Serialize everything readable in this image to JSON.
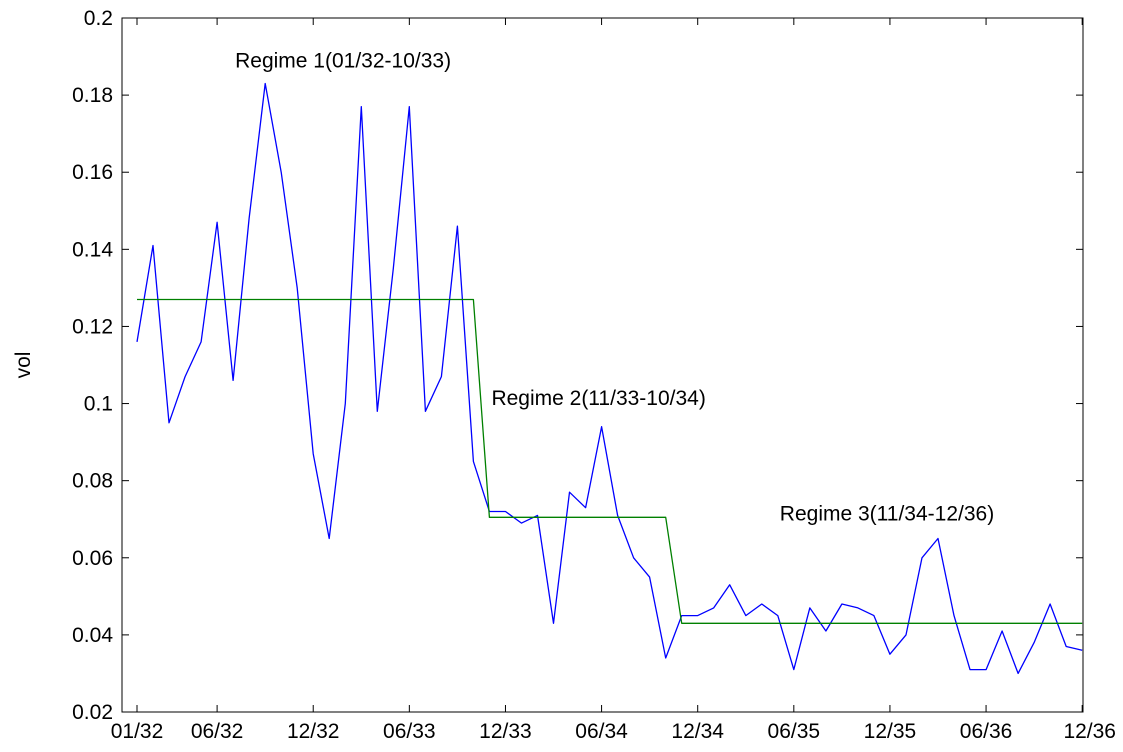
{
  "chart_data": {
    "type": "line",
    "title": "",
    "xlabel": "",
    "ylabel": "vol",
    "ylim": [
      0.02,
      0.2
    ],
    "grid": false,
    "legend": "none",
    "x_unit": "month (MM/YY)",
    "x_ticks": [
      "01/32",
      "06/32",
      "12/32",
      "06/33",
      "12/33",
      "06/34",
      "12/34",
      "06/35",
      "12/35",
      "06/36",
      "12/36"
    ],
    "y_ticks": [
      0.02,
      0.04,
      0.06,
      0.08,
      0.1,
      0.12,
      0.14,
      0.16,
      0.18,
      0.2
    ],
    "y_tick_labels": [
      "0.02",
      "0.04",
      "0.06",
      "0.08",
      "0.1",
      "0.12",
      "0.14",
      "0.16",
      "0.18",
      "0.2"
    ],
    "x": [
      "01/32",
      "02/32",
      "03/32",
      "04/32",
      "05/32",
      "06/32",
      "07/32",
      "08/32",
      "09/32",
      "10/32",
      "11/32",
      "12/32",
      "01/33",
      "02/33",
      "03/33",
      "04/33",
      "05/33",
      "06/33",
      "07/33",
      "08/33",
      "09/33",
      "10/33",
      "11/33",
      "12/33",
      "01/34",
      "02/34",
      "03/34",
      "04/34",
      "05/34",
      "06/34",
      "07/34",
      "08/34",
      "09/34",
      "10/34",
      "11/34",
      "12/34",
      "01/35",
      "02/35",
      "03/35",
      "04/35",
      "05/35",
      "06/35",
      "07/35",
      "08/35",
      "09/35",
      "10/35",
      "11/35",
      "12/35",
      "01/36",
      "02/36",
      "03/36",
      "04/36",
      "05/36",
      "06/36",
      "07/36",
      "08/36",
      "09/36",
      "10/36",
      "11/36",
      "12/36"
    ],
    "series": [
      {
        "name": "",
        "color": "#0000ff",
        "values": [
          0.116,
          0.141,
          0.095,
          0.107,
          0.116,
          0.147,
          0.106,
          0.148,
          0.183,
          0.16,
          0.13,
          0.087,
          0.065,
          0.1,
          0.177,
          0.098,
          0.135,
          0.177,
          0.098,
          0.107,
          0.146,
          0.085,
          0.072,
          0.072,
          0.069,
          0.071,
          0.043,
          0.077,
          0.073,
          0.094,
          0.071,
          0.06,
          0.055,
          0.034,
          0.045,
          0.045,
          0.047,
          0.053,
          0.045,
          0.048,
          0.045,
          0.031,
          0.047,
          0.041,
          0.048,
          0.047,
          0.045,
          0.035,
          0.04,
          0.06,
          0.065,
          0.045,
          0.031,
          0.031,
          0.041,
          0.03,
          0.038,
          0.048,
          0.037,
          0.036
        ]
      },
      {
        "name": "",
        "color": "#008000",
        "values": [
          0.127,
          0.127,
          0.127,
          0.127,
          0.127,
          0.127,
          0.127,
          0.127,
          0.127,
          0.127,
          0.127,
          0.127,
          0.127,
          0.127,
          0.127,
          0.127,
          0.127,
          0.127,
          0.127,
          0.127,
          0.127,
          0.127,
          0.0705,
          0.0705,
          0.0705,
          0.0705,
          0.0705,
          0.0705,
          0.0705,
          0.0705,
          0.0705,
          0.0705,
          0.0705,
          0.0705,
          0.043,
          0.043,
          0.043,
          0.043,
          0.043,
          0.043,
          0.043,
          0.043,
          0.043,
          0.043,
          0.043,
          0.043,
          0.043,
          0.043,
          0.043,
          0.043,
          0.043,
          0.043,
          0.043,
          0.043,
          0.043,
          0.043,
          0.043,
          0.043,
          0.043,
          0.043
        ]
      }
    ],
    "annotations": [
      {
        "text": "Regime 1(01/32-10/33)",
        "x": "07/32",
        "y": 0.189
      },
      {
        "text": "Regime 2(11/33-10/34)",
        "x": "11/33",
        "y": 0.1015
      },
      {
        "text": "Regime 3(11/34-12/36)",
        "x": "05/35",
        "y": 0.0715
      }
    ]
  }
}
